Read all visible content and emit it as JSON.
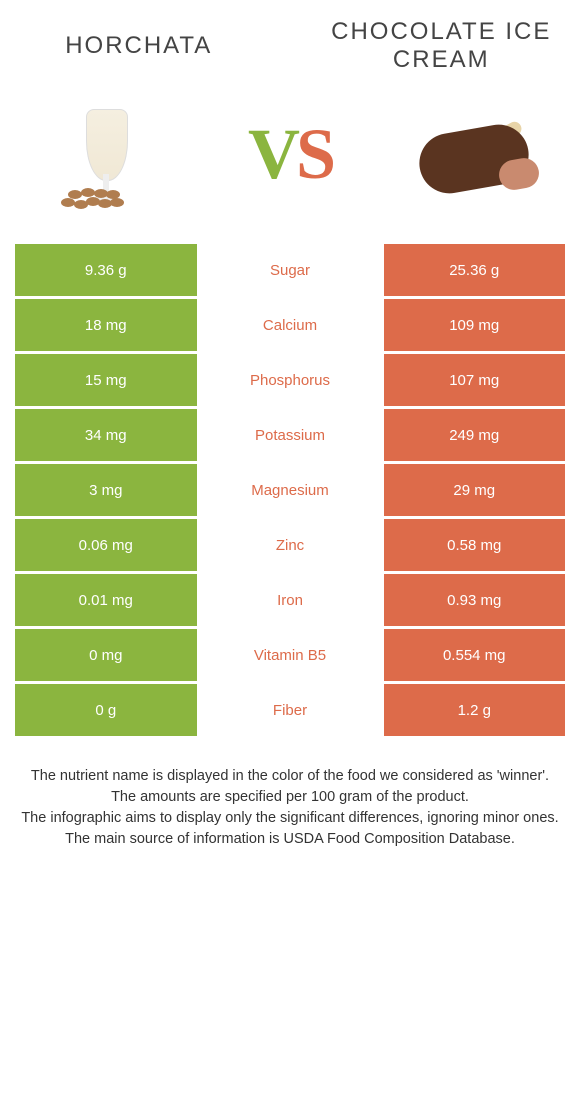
{
  "titles": {
    "left": "Horchata",
    "right": "Chocolate Ice Cream"
  },
  "vs": {
    "v": "V",
    "s": "S"
  },
  "colors": {
    "left": "#8bb53f",
    "right": "#dd6b4a",
    "background": "#ffffff",
    "text": "#444444"
  },
  "fontsize": {
    "title": 24,
    "vs": 72,
    "cell": 15,
    "footnote": 14.5
  },
  "rows": [
    {
      "label": "Sugar",
      "left": "9.36 g",
      "right": "25.36 g",
      "winner": "right"
    },
    {
      "label": "Calcium",
      "left": "18 mg",
      "right": "109 mg",
      "winner": "right"
    },
    {
      "label": "Phosphorus",
      "left": "15 mg",
      "right": "107 mg",
      "winner": "right"
    },
    {
      "label": "Potassium",
      "left": "34 mg",
      "right": "249 mg",
      "winner": "right"
    },
    {
      "label": "Magnesium",
      "left": "3 mg",
      "right": "29 mg",
      "winner": "right"
    },
    {
      "label": "Zinc",
      "left": "0.06 mg",
      "right": "0.58 mg",
      "winner": "right"
    },
    {
      "label": "Iron",
      "left": "0.01 mg",
      "right": "0.93 mg",
      "winner": "right"
    },
    {
      "label": "Vitamin B5",
      "left": "0 mg",
      "right": "0.554 mg",
      "winner": "right"
    },
    {
      "label": "Fiber",
      "left": "0 g",
      "right": "1.2 g",
      "winner": "right"
    }
  ],
  "footnotes": [
    "The nutrient name is displayed in the color of the food we considered as 'winner'.",
    "The amounts are specified per 100 gram of the product.",
    "The infographic aims to display only the significant differences, ignoring minor ones.",
    "The main source of information is USDA Food Composition Database."
  ]
}
